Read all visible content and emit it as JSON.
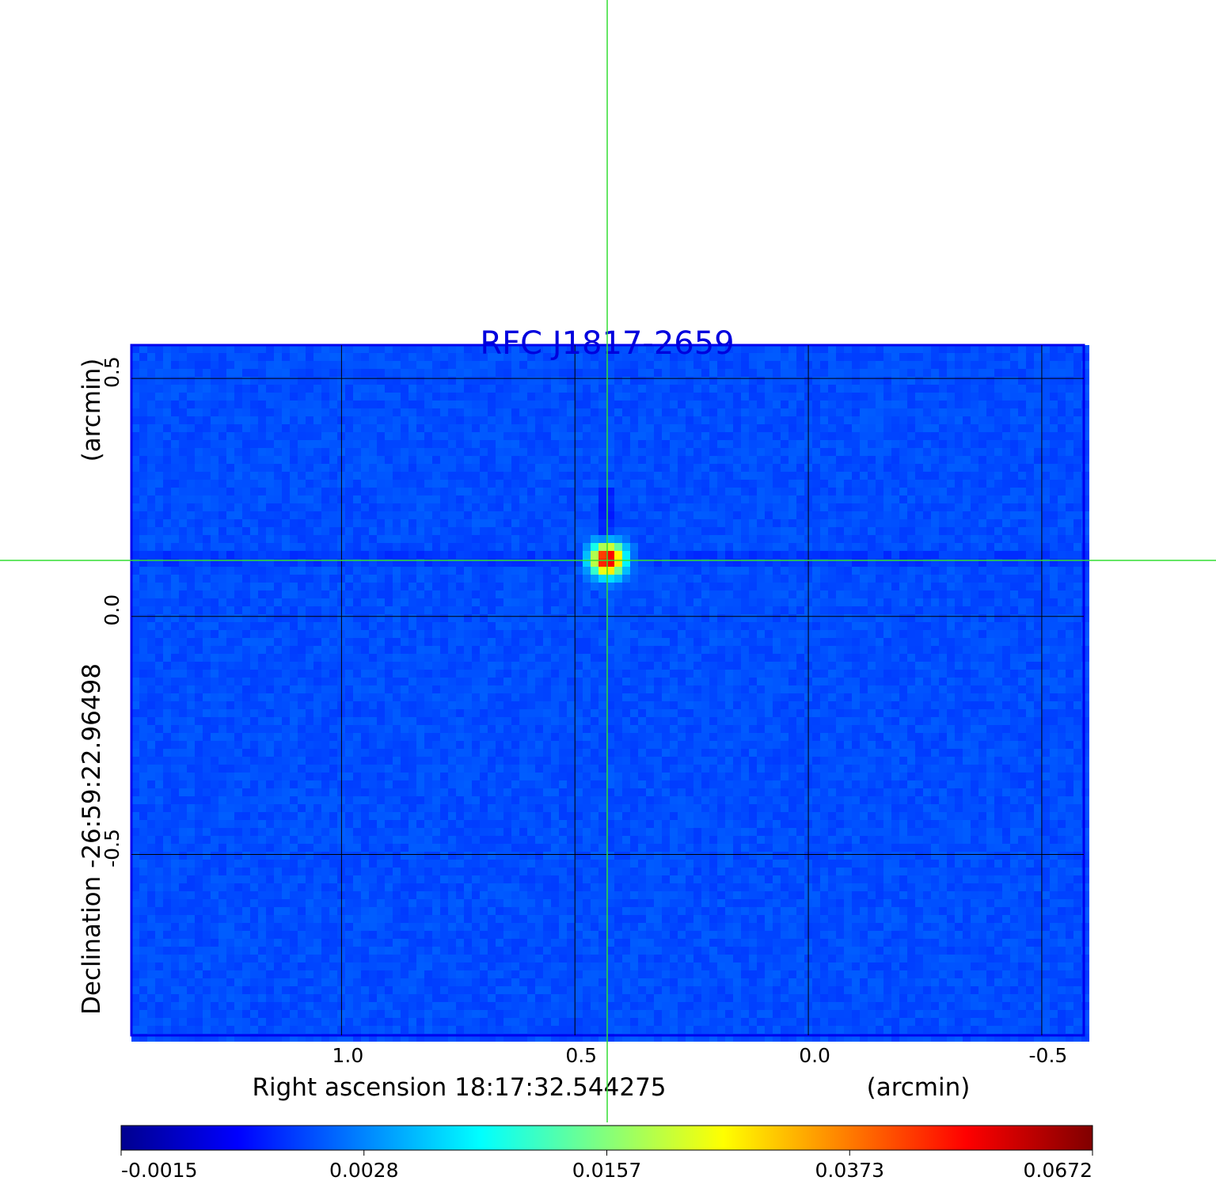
{
  "chart_data": {
    "type": "heatmap",
    "title": "RFC J1817-2659",
    "xlabel": "Right ascension  18:17:32.544275",
    "xunit": "(arcmin)",
    "ylabel": "Declination  -26:59:22.96498",
    "yunit": "(arcmin)",
    "xticks": [
      1.0,
      0.5,
      0.0,
      -0.5
    ],
    "xtick_labels": [
      "1.0",
      "0.5",
      "0.0",
      "-0.5"
    ],
    "yticks": [
      0.5,
      0.0,
      -0.5
    ],
    "ytick_labels": [
      "0.5",
      "0.0",
      "-0.5"
    ],
    "xlim": [
      1.45,
      -0.59
    ],
    "ylim": [
      -0.88,
      0.57
    ],
    "grid": true,
    "colormap": "jet",
    "colorbar": {
      "placement": "bottom",
      "tick_labels": [
        "-0.0015",
        "0.0028",
        "0.0157",
        "0.0373",
        "0.0672"
      ]
    },
    "source_peak": {
      "ra_offset": 0.43,
      "dec_offset": 0.12
    },
    "crosshair_color": "#33dd33",
    "title_color": "#0000dd"
  }
}
